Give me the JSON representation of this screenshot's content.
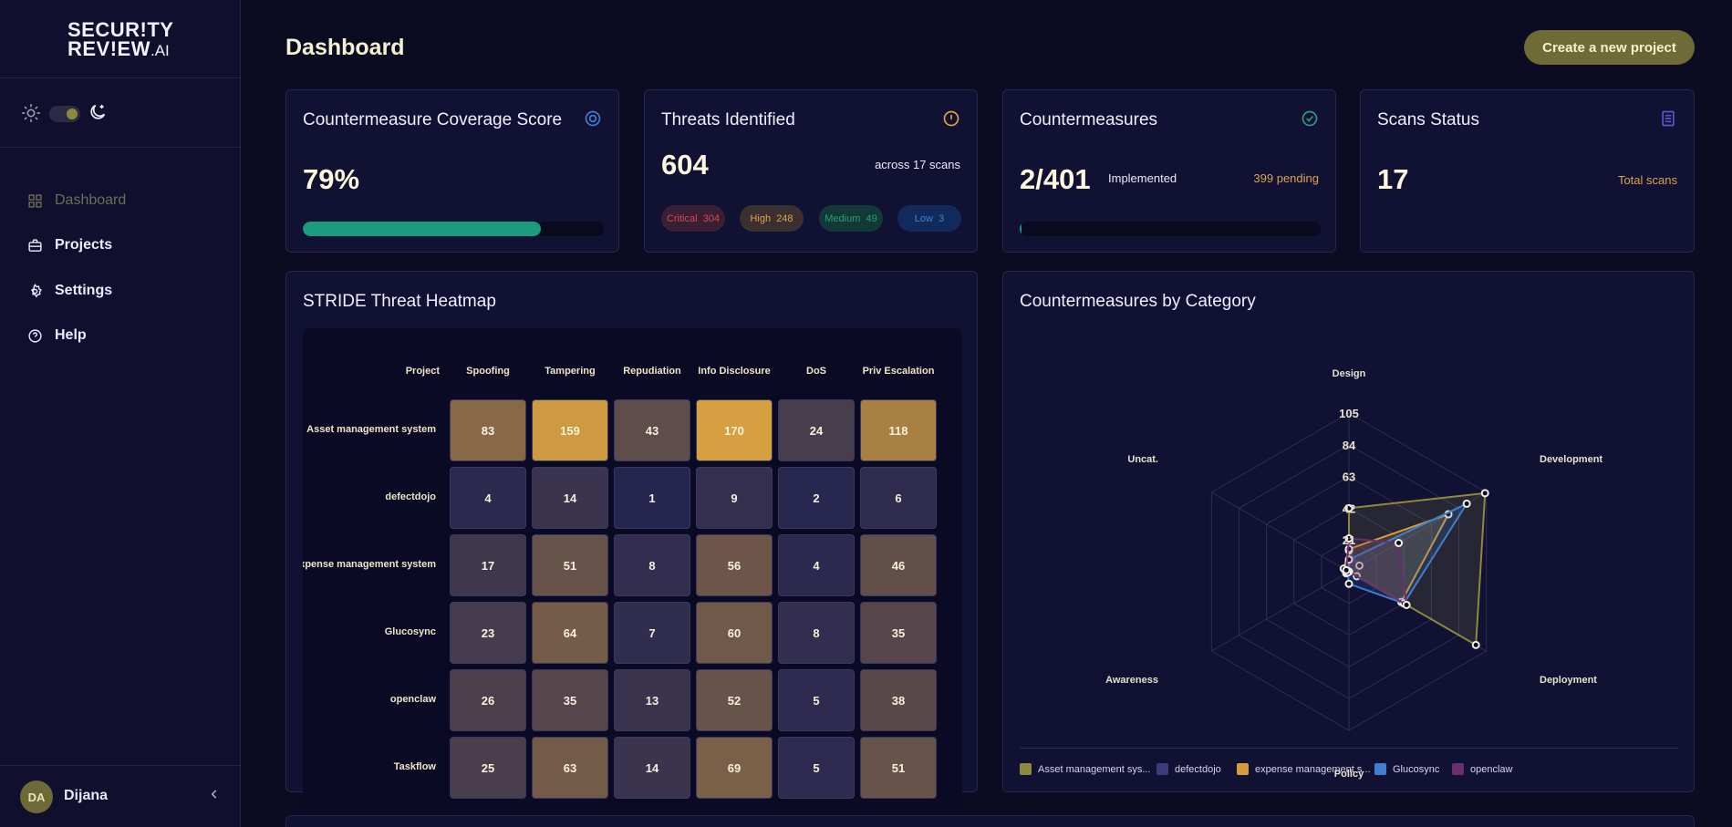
{
  "sidebar": {
    "logo_line1": "SECUR!TY",
    "logo_line2": "REV!EW",
    "logo_suffix": ".AI",
    "nav": [
      {
        "label": "Dashboard",
        "icon": "grid-icon",
        "active": true
      },
      {
        "label": "Projects",
        "icon": "briefcase-icon"
      },
      {
        "label": "Settings",
        "icon": "gear-icon"
      },
      {
        "label": "Help",
        "icon": "help-circle-icon"
      }
    ],
    "user": {
      "initials": "DA",
      "name": "Dijana"
    }
  },
  "header": {
    "title": "Dashboard",
    "create_button": "Create a new project"
  },
  "stats": {
    "coverage": {
      "title": "Countermeasure Coverage Score",
      "value": "79%",
      "progress": 0.79
    },
    "threats": {
      "title": "Threats Identified",
      "value": "604",
      "subtitle": "across 17 scans",
      "pills": [
        {
          "label": "Critical",
          "count": "304"
        },
        {
          "label": "High",
          "count": "248"
        },
        {
          "label": "Medium",
          "count": "49"
        },
        {
          "label": "Low",
          "count": "3"
        }
      ]
    },
    "countermeasures": {
      "title": "Countermeasures",
      "value": "2/401",
      "label": "Implemented",
      "pending": "399 pending",
      "progress": 0.005
    },
    "scans": {
      "title": "Scans Status",
      "value": "17",
      "label": "Total scans"
    }
  },
  "heatmap": {
    "title": "STRIDE Threat Heatmap",
    "project_header": "Project",
    "columns": [
      "Spoofing",
      "Tampering",
      "Repudiation",
      "Info Disclosure",
      "DoS",
      "Priv Escalation"
    ],
    "rows": [
      {
        "project": "Asset management system",
        "values": [
          83,
          159,
          43,
          170,
          24,
          118
        ]
      },
      {
        "project": "defectdojo",
        "values": [
          4,
          14,
          1,
          9,
          2,
          6
        ]
      },
      {
        "project": "expense management system",
        "values": [
          17,
          51,
          8,
          56,
          4,
          46
        ]
      },
      {
        "project": "Glucosync",
        "values": [
          23,
          64,
          7,
          60,
          8,
          35
        ]
      },
      {
        "project": "openclaw",
        "values": [
          26,
          35,
          13,
          52,
          5,
          38
        ]
      },
      {
        "project": "Taskflow",
        "values": [
          25,
          63,
          14,
          69,
          5,
          51
        ]
      }
    ]
  },
  "chart_data": {
    "type": "radar",
    "title": "Countermeasures by Category",
    "axes": [
      "Design",
      "Development",
      "Deployment",
      "Policy",
      "Awareness",
      "Uncat."
    ],
    "ticks": [
      21,
      42,
      63,
      84,
      105
    ],
    "max": 105,
    "series": [
      {
        "name": "Asset management sys...",
        "color": "#8e8a3c",
        "values": [
          42,
          104,
          97,
          0,
          1,
          0
        ]
      },
      {
        "name": "defectdojo",
        "color": "#3c3a78",
        "values": [
          14,
          8,
          6,
          0,
          2,
          3
        ]
      },
      {
        "name": "expense management s...",
        "color": "#d39c3c",
        "values": [
          15,
          76,
          40,
          0,
          2,
          4
        ]
      },
      {
        "name": "Glucosync",
        "color": "#3f7fd0",
        "values": [
          8,
          90,
          42,
          8,
          1,
          0
        ]
      },
      {
        "name": "openclaw",
        "color": "#6a2f6e",
        "values": [
          22,
          38,
          44,
          0,
          1,
          2
        ]
      }
    ]
  },
  "colors": {
    "accent": "#6e6b36",
    "teal": "#1a9c7e",
    "critical": "#d24a5a",
    "high": "#e0a24a",
    "medium": "#2e9c7e",
    "low": "#3f7fd0"
  }
}
